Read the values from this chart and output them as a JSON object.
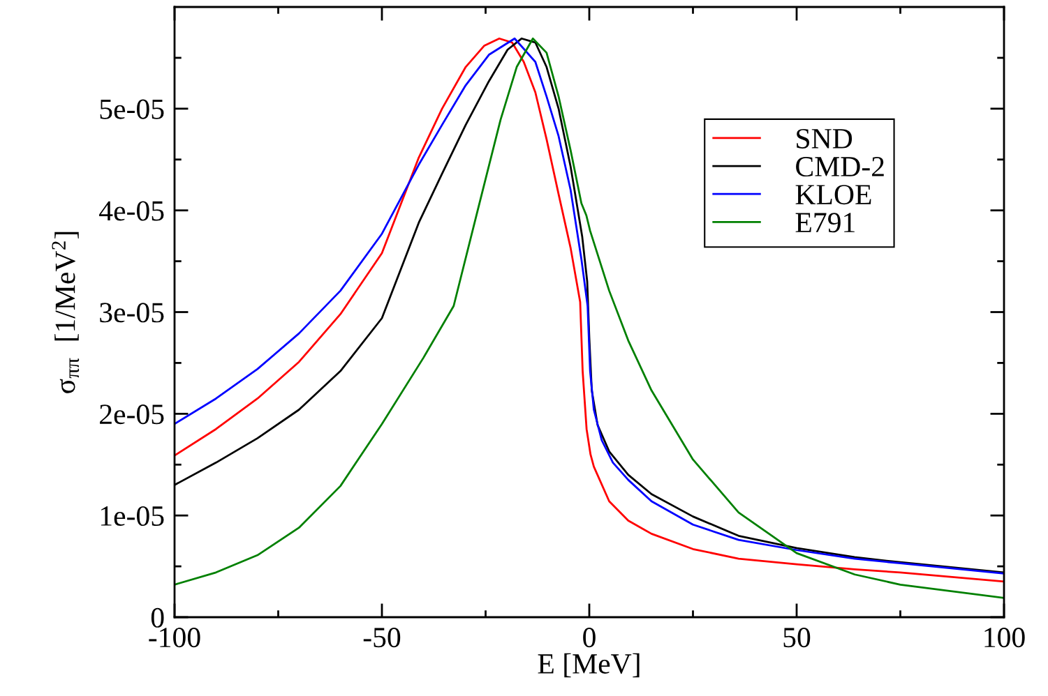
{
  "chart_data": {
    "type": "line",
    "xlabel": "E [MeV]",
    "ylabel": "σ$_{ππ}$  [1/MeV$^{2}$]",
    "xlim": [
      -100,
      100
    ],
    "xticks": [
      -100,
      -50,
      0,
      50,
      100
    ],
    "ylim": [
      0,
      6e-05
    ],
    "yticks": [
      0,
      {
        "value": 1e-05,
        "label": "1e-05"
      },
      {
        "value": 2e-05,
        "label": "2e-05"
      },
      {
        "value": 3e-05,
        "label": "3e-05"
      },
      {
        "value": 4e-05,
        "label": "4e-05"
      },
      {
        "value": 5e-05,
        "label": "5e-05"
      }
    ],
    "legend": "top right",
    "grid": false,
    "marker": "none",
    "line_style": "solid",
    "series": [
      {
        "name": "SND",
        "color": "#ff0000",
        "x": [
          -100,
          -90,
          -80,
          -70,
          -60,
          -50,
          -41.1,
          -35.5,
          -29.8,
          -25.3,
          -21.7,
          -18.6,
          -15.8,
          -13,
          -10.3,
          -7.4,
          -4.5,
          -2.2,
          -1.6,
          -0.65,
          0.3,
          1.1,
          4.8,
          9.4,
          15,
          25,
          36,
          50,
          64,
          75,
          100
        ],
        "values": [
          1.59e-05,
          1.85e-05,
          2.15e-05,
          2.51e-05,
          2.98e-05,
          3.58e-05,
          4.52e-05,
          5e-05,
          5.41e-05,
          5.62e-05,
          5.69e-05,
          5.65e-05,
          5.46e-05,
          5.16e-05,
          4.7e-05,
          4.16e-05,
          3.63e-05,
          3.1e-05,
          2.42e-05,
          1.85e-05,
          1.6e-05,
          1.48e-05,
          1.14e-05,
          9.5e-06,
          8.2e-06,
          6.7e-06,
          5.75e-06,
          5.2e-06,
          4.7e-06,
          4.4e-06,
          3.5e-06
        ]
      },
      {
        "name": "CMD-2",
        "color": "#000000",
        "x": [
          -100,
          -90,
          -80,
          -70,
          -60,
          -50,
          -41.1,
          -35.5,
          -29.8,
          -24.2,
          -19.7,
          -16.3,
          -13,
          -10.3,
          -7.4,
          -4.5,
          -1.7,
          -0.5,
          0,
          0.6,
          2,
          4.8,
          9.4,
          15,
          25,
          36,
          50,
          64,
          75,
          100
        ],
        "values": [
          1.3e-05,
          1.52e-05,
          1.76e-05,
          2.04e-05,
          2.42e-05,
          2.94e-05,
          3.88e-05,
          4.36e-05,
          4.84e-05,
          5.27e-05,
          5.58e-05,
          5.69e-05,
          5.65e-05,
          5.41e-05,
          5e-05,
          4.43e-05,
          3.74e-05,
          3.3e-05,
          2.75e-05,
          2.23e-05,
          1.89e-05,
          1.63e-05,
          1.4e-05,
          1.21e-05,
          9.9e-06,
          8e-06,
          6.8e-06,
          5.9e-06,
          5.4e-06,
          4.4e-06
        ]
      },
      {
        "name": "KLOE",
        "color": "#0000ff",
        "x": [
          -100,
          -90,
          -80,
          -70,
          -60,
          -50,
          -41.1,
          -35.5,
          -29.8,
          -24.2,
          -18,
          -13,
          -10.3,
          -7.4,
          -4.5,
          -1.9,
          -0.4,
          0.2,
          1.1,
          3,
          5.7,
          9.4,
          15,
          25,
          36,
          50,
          64,
          75,
          100
        ],
        "values": [
          1.9e-05,
          2.15e-05,
          2.44e-05,
          2.79e-05,
          3.21e-05,
          3.77e-05,
          4.45e-05,
          4.84e-05,
          5.23e-05,
          5.53e-05,
          5.69e-05,
          5.46e-05,
          5.12e-05,
          4.73e-05,
          4.2e-05,
          3.52e-05,
          3.06e-05,
          2.42e-05,
          2.04e-05,
          1.74e-05,
          1.52e-05,
          1.35e-05,
          1.14e-05,
          9.1e-06,
          7.6e-06,
          6.6e-06,
          5.75e-06,
          5.3e-06,
          4.3e-06
        ]
      },
      {
        "name": "E791",
        "color": "#008000",
        "x": [
          -100,
          -90,
          -80,
          -70,
          -60,
          -50,
          -40,
          -32.7,
          -27.1,
          -21.4,
          -17.5,
          -13.6,
          -10.3,
          -7.4,
          -4.5,
          -1.9,
          -0.7,
          0.2,
          4.8,
          9.4,
          15,
          25,
          36,
          50,
          64,
          75,
          100
        ],
        "values": [
          3.2e-06,
          4.4e-06,
          6.1e-06,
          8.8e-06,
          1.29e-05,
          1.9e-05,
          2.55e-05,
          3.06e-05,
          3.97e-05,
          4.89e-05,
          5.41e-05,
          5.69e-05,
          5.55e-05,
          5.12e-05,
          4.59e-05,
          4.07e-05,
          3.95e-05,
          3.8e-05,
          3.21e-05,
          2.72e-05,
          2.23e-05,
          1.55e-05,
          1.03e-05,
          6.3e-06,
          4.2e-06,
          3.2e-06,
          1.9e-06
        ]
      }
    ]
  }
}
